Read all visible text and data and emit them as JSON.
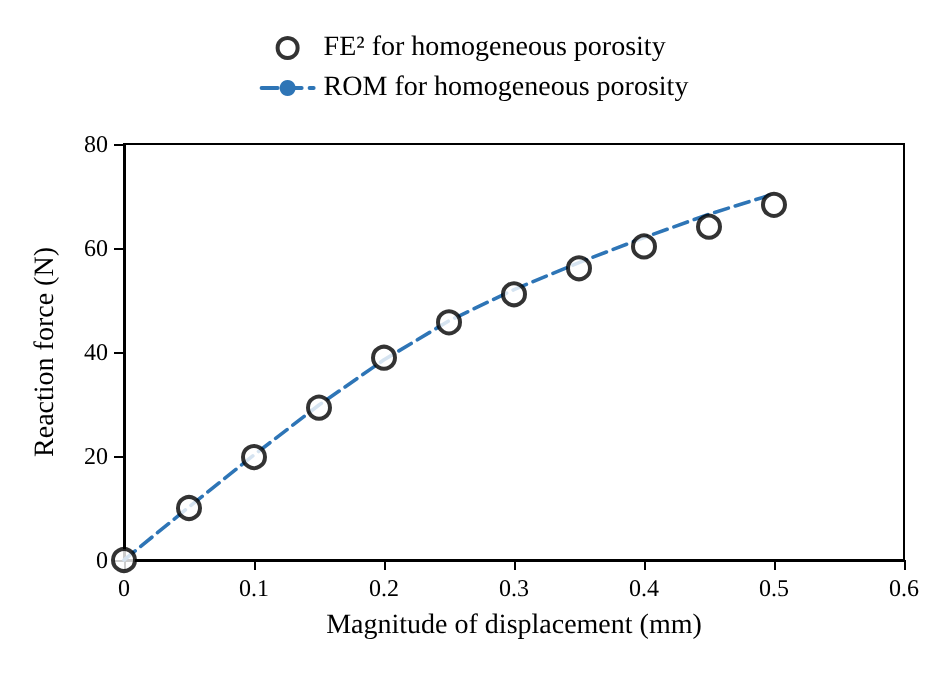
{
  "chart_data": {
    "type": "scatter",
    "xlabel": "Magnitude of displacement (mm)",
    "ylabel": "Reaction force (N)",
    "xlim": [
      0,
      0.6
    ],
    "xticks": [
      0,
      0.1,
      0.2,
      0.3,
      0.4,
      0.5,
      0.6
    ],
    "ylim": [
      0,
      80
    ],
    "yticks": [
      0,
      20,
      40,
      60,
      80
    ],
    "grid": false,
    "legend": "top",
    "series": [
      {
        "name": "FE² for homogeneous porosity",
        "marker": "circle",
        "color": "#000000",
        "x": [
          0,
          0.05,
          0.1,
          0.15,
          0.2,
          0.25,
          0.3,
          0.35,
          0.4,
          0.45,
          0.5
        ],
        "values": [
          0,
          10.0,
          19.8,
          29.3,
          38.9,
          45.7,
          51.1,
          56.1,
          60.3,
          64.1,
          68.3
        ]
      },
      {
        "name": "ROM for homogeneous porosity",
        "type": "line",
        "line_style": "dashed",
        "marker": "none",
        "color": "#2e75b6",
        "x": [
          0,
          0.05,
          0.1,
          0.15,
          0.2,
          0.25,
          0.3,
          0.35,
          0.4,
          0.45,
          0.5
        ],
        "values": [
          0,
          10.2,
          20.2,
          29.8,
          38.5,
          46,
          52,
          57.2,
          62,
          66.5,
          70.4
        ]
      }
    ]
  }
}
